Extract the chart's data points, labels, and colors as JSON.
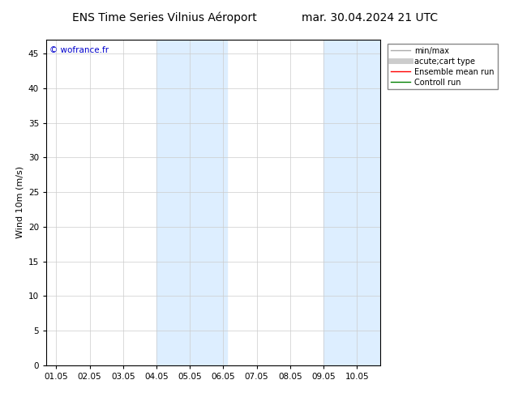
{
  "title_left": "ENS Time Series Vilnius Aéroport",
  "title_right": "mar. 30.04.2024 21 UTC",
  "ylabel": "Wind 10m (m/s)",
  "ylim": [
    0,
    47
  ],
  "yticks": [
    0,
    5,
    10,
    15,
    20,
    25,
    30,
    35,
    40,
    45
  ],
  "xtick_labels": [
    "01.05",
    "02.05",
    "03.05",
    "04.05",
    "05.05",
    "06.05",
    "07.05",
    "08.05",
    "09.05",
    "10.05"
  ],
  "xtick_positions": [
    0,
    1,
    2,
    3,
    4,
    5,
    6,
    7,
    8,
    9
  ],
  "xlim": [
    -0.3,
    9.7
  ],
  "shade_regions": [
    {
      "xmin": 3.0,
      "xmax": 5.1
    },
    {
      "xmin": 8.0,
      "xmax": 9.7
    }
  ],
  "shade_color": "#ddeeff",
  "background_color": "#ffffff",
  "watermark_text": "© wofrance.fr",
  "watermark_color": "#0000cc",
  "legend_entries": [
    {
      "label": "min/max",
      "color": "#aaaaaa",
      "lw": 1.0
    },
    {
      "label": "acute;cart type",
      "color": "#cccccc",
      "lw": 5
    },
    {
      "label": "Ensemble mean run",
      "color": "#ff0000",
      "lw": 1.0
    },
    {
      "label": "Controll run",
      "color": "#008000",
      "lw": 1.0
    }
  ],
  "title_fontsize": 10,
  "tick_fontsize": 7.5,
  "ylabel_fontsize": 8,
  "legend_fontsize": 7,
  "grid_color": "#cccccc",
  "border_color": "#000000",
  "fig_width": 6.34,
  "fig_height": 4.9,
  "dpi": 100
}
